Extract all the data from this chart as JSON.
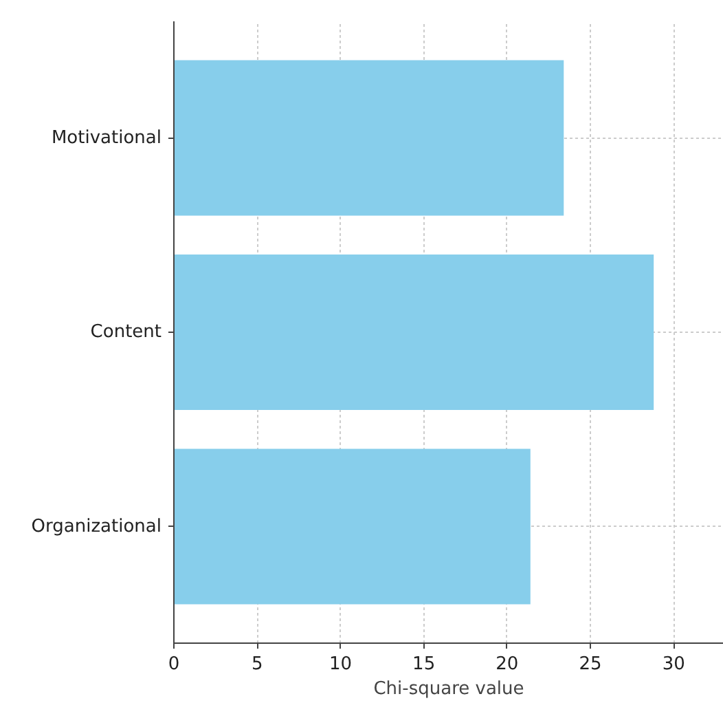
{
  "chart_data": {
    "type": "bar",
    "orientation": "horizontal",
    "xlabel": "Chi-square value",
    "categories": [
      "Motivational",
      "Content",
      "Organizational"
    ],
    "values": [
      23.4,
      28.8,
      21.4
    ],
    "color": "#87ceeb",
    "xlim": [
      0,
      33
    ],
    "xticks": [
      0,
      5,
      10,
      15,
      20,
      25,
      30
    ],
    "grid": true
  }
}
